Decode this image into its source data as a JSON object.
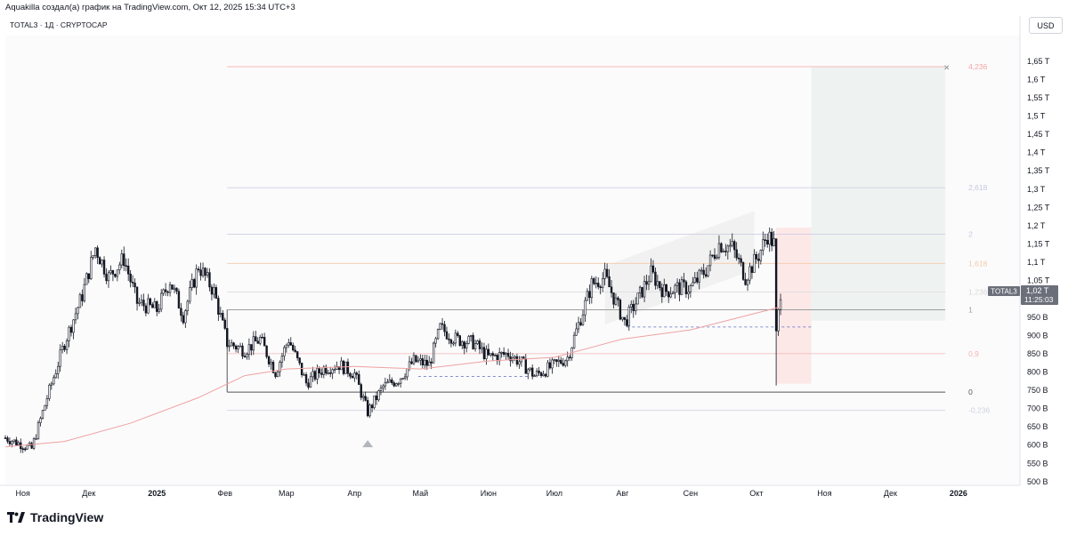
{
  "header": {
    "caption": "Aquakilla создал(а) график на TradingView.com, Окт 12, 2025 15:34 UTC+3",
    "symbol_line": "TOTAL3 · 1Д · CRYPTOCAP",
    "currency": "USD"
  },
  "footer": {
    "brand": "TradingView"
  },
  "price_label": {
    "symbol": "TOTAL3",
    "price": "1,02 T",
    "countdown": "11:25:03"
  },
  "colors": {
    "up": "#131722",
    "down": "#131722",
    "ma": "#f0a1a1",
    "fib_line": "#9e9e9e",
    "fib_4236": "#f7a5a5",
    "fib_2618": "#c5c8e0",
    "fib_1618": "#f5c9a8",
    "fib_09": "#f5b5b5",
    "target_zone": "#eef3f1",
    "stop_zone": "#fde8e8",
    "channel": "#ececec",
    "dashed": "#5c6bc0"
  },
  "chart_data": {
    "type": "candlestick",
    "title": "TOTAL3 · 1Д · CRYPTOCAP",
    "ylabel": "USD",
    "ylim": [
      490,
      1720
    ],
    "y_ticks": [
      {
        "v": 500,
        "label": "500 B"
      },
      {
        "v": 550,
        "label": "550 B"
      },
      {
        "v": 600,
        "label": "600 B"
      },
      {
        "v": 650,
        "label": "650 B"
      },
      {
        "v": 700,
        "label": "700 B"
      },
      {
        "v": 750,
        "label": "750 B"
      },
      {
        "v": 800,
        "label": "800 B"
      },
      {
        "v": 850,
        "label": "850 B"
      },
      {
        "v": 900,
        "label": "900 B"
      },
      {
        "v": 950,
        "label": "950 B"
      },
      {
        "v": 1050,
        "label": "1,05 T"
      },
      {
        "v": 1100,
        "label": "1,1 T"
      },
      {
        "v": 1150,
        "label": "1,15 T"
      },
      {
        "v": 1200,
        "label": "1,2 T"
      },
      {
        "v": 1250,
        "label": "1,25 T"
      },
      {
        "v": 1300,
        "label": "1,3 T"
      },
      {
        "v": 1350,
        "label": "1,35 T"
      },
      {
        "v": 1400,
        "label": "1,4 T"
      },
      {
        "v": 1450,
        "label": "1,45 T"
      },
      {
        "v": 1500,
        "label": "1,5 T"
      },
      {
        "v": 1550,
        "label": "1,55 T"
      },
      {
        "v": 1600,
        "label": "1,6 T"
      },
      {
        "v": 1650,
        "label": "1,65 T"
      }
    ],
    "x_ticks": [
      {
        "date": "2024-11-01",
        "label": "Ноя"
      },
      {
        "date": "2024-12-01",
        "label": "Дек"
      },
      {
        "date": "2025-01-01",
        "label": "2025"
      },
      {
        "date": "2025-02-01",
        "label": "Фев"
      },
      {
        "date": "2025-03-01",
        "label": "Мар"
      },
      {
        "date": "2025-04-01",
        "label": "Апр"
      },
      {
        "date": "2025-05-01",
        "label": "Май"
      },
      {
        "date": "2025-06-01",
        "label": "Июн"
      },
      {
        "date": "2025-07-01",
        "label": "Июл"
      },
      {
        "date": "2025-08-01",
        "label": "Авг"
      },
      {
        "date": "2025-09-01",
        "label": "Сен"
      },
      {
        "date": "2025-10-01",
        "label": "Окт"
      },
      {
        "date": "2025-11-01",
        "label": "Ноя"
      },
      {
        "date": "2025-12-01",
        "label": "Дек"
      },
      {
        "date": "2026-01-01",
        "label": "2026"
      }
    ],
    "xlim": [
      "2024-10-24",
      "2026-01-29"
    ],
    "close_path": [
      [
        "2024-10-24",
        620
      ],
      [
        "2024-11-05",
        590
      ],
      [
        "2024-11-12",
        730
      ],
      [
        "2024-11-20",
        880
      ],
      [
        "2024-11-28",
        1010
      ],
      [
        "2024-12-04",
        1140
      ],
      [
        "2024-12-10",
        1060
      ],
      [
        "2024-12-17",
        1110
      ],
      [
        "2024-12-23",
        990
      ],
      [
        "2025-01-01",
        970
      ],
      [
        "2025-01-07",
        1050
      ],
      [
        "2025-01-13",
        955
      ],
      [
        "2025-01-20",
        1090
      ],
      [
        "2025-01-27",
        1020
      ],
      [
        "2025-02-02",
        880
      ],
      [
        "2025-02-10",
        860
      ],
      [
        "2025-02-17",
        890
      ],
      [
        "2025-02-24",
        800
      ],
      [
        "2025-03-02",
        890
      ],
      [
        "2025-03-10",
        770
      ],
      [
        "2025-03-18",
        810
      ],
      [
        "2025-03-25",
        820
      ],
      [
        "2025-04-01",
        795
      ],
      [
        "2025-04-07",
        690
      ],
      [
        "2025-04-14",
        760
      ],
      [
        "2025-04-21",
        780
      ],
      [
        "2025-04-28",
        830
      ],
      [
        "2025-05-05",
        820
      ],
      [
        "2025-05-10",
        920
      ],
      [
        "2025-05-17",
        890
      ],
      [
        "2025-05-25",
        880
      ],
      [
        "2025-06-01",
        840
      ],
      [
        "2025-06-10",
        850
      ],
      [
        "2025-06-16",
        825
      ],
      [
        "2025-06-22",
        790
      ],
      [
        "2025-06-30",
        815
      ],
      [
        "2025-07-07",
        840
      ],
      [
        "2025-07-12",
        930
      ],
      [
        "2025-07-18",
        1040
      ],
      [
        "2025-07-24",
        1060
      ],
      [
        "2025-08-02",
        935
      ],
      [
        "2025-08-08",
        1000
      ],
      [
        "2025-08-14",
        1070
      ],
      [
        "2025-08-20",
        1020
      ],
      [
        "2025-08-26",
        1030
      ],
      [
        "2025-09-01",
        1030
      ],
      [
        "2025-09-08",
        1080
      ],
      [
        "2025-09-14",
        1150
      ],
      [
        "2025-09-20",
        1140
      ],
      [
        "2025-09-26",
        1060
      ],
      [
        "2025-10-02",
        1120
      ],
      [
        "2025-10-06",
        1175
      ],
      [
        "2025-10-09",
        1150
      ],
      [
        "2025-10-10",
        900
      ],
      [
        "2025-10-12",
        1020
      ]
    ],
    "ma_200": [
      [
        "2024-10-24",
        595
      ],
      [
        "2024-11-20",
        610
      ],
      [
        "2024-12-20",
        660
      ],
      [
        "2025-01-20",
        730
      ],
      [
        "2025-02-10",
        790
      ],
      [
        "2025-03-01",
        808
      ],
      [
        "2025-04-01",
        815
      ],
      [
        "2025-05-01",
        808
      ],
      [
        "2025-06-01",
        830
      ],
      [
        "2025-07-01",
        840
      ],
      [
        "2025-08-01",
        890
      ],
      [
        "2025-09-01",
        915
      ],
      [
        "2025-10-12",
        978
      ]
    ],
    "flash_crash_wick": {
      "date": "2025-10-10",
      "high": 1130,
      "low": 763
    },
    "april_low": {
      "date": "2025-04-07",
      "low": 660
    },
    "fib_levels": [
      {
        "ratio": "4,236",
        "value": 1635
      },
      {
        "ratio": "2,618",
        "value": 1304
      },
      {
        "ratio": "2",
        "value": 1177
      },
      {
        "ratio": "1,618",
        "value": 1097
      },
      {
        "ratio": "1,236",
        "value": 1019
      },
      {
        "ratio": "1",
        "value": 970
      },
      {
        "ratio": "0,9",
        "value": 850
      },
      {
        "ratio": "0",
        "value": 745
      },
      {
        "ratio": "-0,236",
        "value": 695
      }
    ],
    "fib_range": {
      "start": "2025-02-02",
      "end": "2025-12-26"
    },
    "range_box": {
      "start": "2025-02-02",
      "end": "2025-12-26",
      "top": 970,
      "bottom": 745
    },
    "dashed_levels": [
      {
        "start": "2025-04-30",
        "end": "2025-06-20",
        "value": 788
      },
      {
        "start": "2025-08-03",
        "end": "2025-10-26",
        "value": 923
      }
    ],
    "target_zone": {
      "start": "2025-10-26",
      "end": "2025-12-26",
      "top": 1635,
      "bottom": 940
    },
    "stop_zone": {
      "start": "2025-10-10",
      "end": "2025-10-26",
      "top": 1195,
      "bottom": 768
    },
    "channel": {
      "start": "2025-07-24",
      "end": "2025-09-30",
      "top_start": 1090,
      "top_end": 1240,
      "bot_start": 930,
      "bot_end": 1080
    },
    "last_price": 1020
  }
}
